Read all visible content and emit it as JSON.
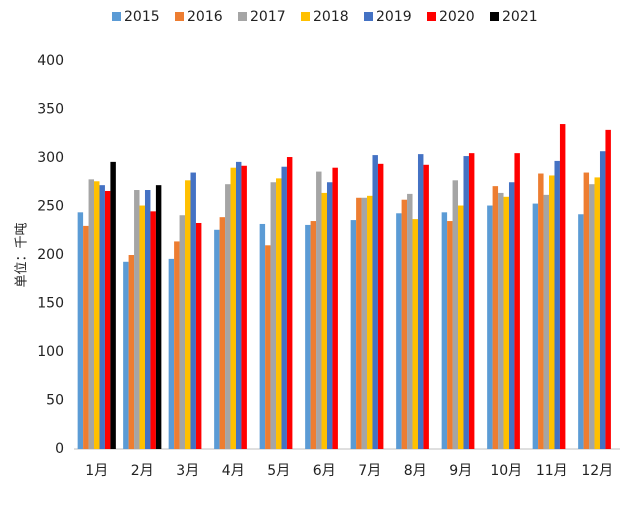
{
  "chart_data": {
    "type": "bar",
    "y_label": "单位：千吨",
    "categories": [
      "1月",
      "2月",
      "3月",
      "4月",
      "5月",
      "6月",
      "7月",
      "8月",
      "9月",
      "10月",
      "11月",
      "12月"
    ],
    "series": [
      {
        "name": "2015",
        "color": "#5b9bd5",
        "values": [
          244,
          193,
          196,
          226,
          232,
          231,
          236,
          243,
          244,
          251,
          253,
          242
        ]
      },
      {
        "name": "2016",
        "color": "#ed7d31",
        "values": [
          230,
          200,
          214,
          239,
          210,
          235,
          259,
          257,
          235,
          271,
          284,
          285
        ]
      },
      {
        "name": "2017",
        "color": "#a5a5a5",
        "values": [
          278,
          267,
          241,
          273,
          275,
          286,
          259,
          263,
          277,
          264,
          262,
          273
        ]
      },
      {
        "name": "2018",
        "color": "#ffc000",
        "values": [
          276,
          251,
          277,
          290,
          279,
          264,
          261,
          237,
          251,
          260,
          282,
          280
        ]
      },
      {
        "name": "2019",
        "color": "#4472c4",
        "values": [
          272,
          267,
          285,
          296,
          291,
          275,
          303,
          304,
          302,
          275,
          297,
          307
        ]
      },
      {
        "name": "2020",
        "color": "#ff0000",
        "values": [
          266,
          245,
          233,
          292,
          301,
          290,
          294,
          293,
          305,
          305,
          335,
          329
        ]
      },
      {
        "name": "2021",
        "color": "#000000",
        "values": [
          296,
          272,
          null,
          null,
          null,
          null,
          null,
          null,
          null,
          null,
          null,
          null
        ]
      }
    ],
    "ylim": [
      0,
      400
    ],
    "yticks": [
      0,
      50,
      100,
      150,
      200,
      250,
      300,
      350,
      400
    ]
  }
}
